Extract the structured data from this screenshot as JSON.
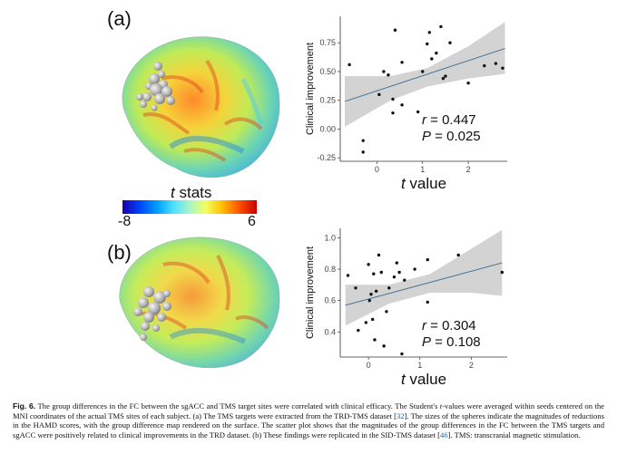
{
  "panel_a_label": "(a)",
  "panel_b_label": "(b)",
  "colorbar": {
    "title_italic": "t",
    "title_rest": "stats",
    "min_label": "-8",
    "max_label": "6"
  },
  "chart_data": [
    {
      "type": "scatter",
      "panel": "(a)",
      "xlabel": "t value",
      "ylabel": "Clinical improvement",
      "xlim": [
        -0.8,
        2.85
      ],
      "ylim": [
        -0.28,
        0.98
      ],
      "xticks": [
        0,
        1,
        2
      ],
      "yticks": [
        -0.25,
        0,
        0.25,
        0.5,
        0.75
      ],
      "ytick_labels": [
        "-0.25",
        "0.00",
        "0.25",
        "0.50",
        "0.75"
      ],
      "stat_r": "r = 0.447",
      "stat_p": "P = 0.025",
      "fit": {
        "x0": -0.7,
        "y0": 0.24,
        "x1": 2.8,
        "y1": 0.7
      },
      "band": {
        "upper": [
          [
            -0.7,
            0.46
          ],
          [
            0.3,
            0.46
          ],
          [
            1.1,
            0.53
          ],
          [
            2.0,
            0.72
          ],
          [
            2.8,
            0.93
          ]
        ],
        "lower": [
          [
            2.8,
            0.48
          ],
          [
            2.0,
            0.44
          ],
          [
            1.1,
            0.37
          ],
          [
            0.3,
            0.25
          ],
          [
            -0.7,
            0.02
          ]
        ]
      },
      "points": [
        {
          "x": -0.6,
          "y": 0.56
        },
        {
          "x": -0.3,
          "y": -0.1
        },
        {
          "x": -0.3,
          "y": -0.2
        },
        {
          "x": 0.05,
          "y": 0.3
        },
        {
          "x": 0.15,
          "y": 0.5
        },
        {
          "x": 0.25,
          "y": 0.47
        },
        {
          "x": 0.35,
          "y": 0.26
        },
        {
          "x": 0.35,
          "y": 0.14
        },
        {
          "x": 0.4,
          "y": 0.86
        },
        {
          "x": 0.55,
          "y": 0.58
        },
        {
          "x": 0.55,
          "y": 0.21
        },
        {
          "x": 0.9,
          "y": 0.15
        },
        {
          "x": 1.0,
          "y": 0.5
        },
        {
          "x": 1.1,
          "y": 0.74
        },
        {
          "x": 1.15,
          "y": 0.84
        },
        {
          "x": 1.2,
          "y": 0.61
        },
        {
          "x": 1.3,
          "y": 0.66
        },
        {
          "x": 1.4,
          "y": 0.89
        },
        {
          "x": 1.45,
          "y": 0.44
        },
        {
          "x": 1.5,
          "y": 0.46
        },
        {
          "x": 1.6,
          "y": 0.75
        },
        {
          "x": 2.0,
          "y": 0.4
        },
        {
          "x": 2.35,
          "y": 0.55
        },
        {
          "x": 2.6,
          "y": 0.57
        },
        {
          "x": 2.75,
          "y": 0.53
        }
      ]
    },
    {
      "type": "scatter",
      "panel": "(b)",
      "xlabel": "t value",
      "ylabel": "Clinical improvement",
      "xlim": [
        -0.55,
        2.7
      ],
      "ylim": [
        0.24,
        1.06
      ],
      "xticks": [
        0,
        1,
        2
      ],
      "yticks": [
        0.4,
        0.6,
        0.8,
        1.0
      ],
      "ytick_labels": [
        "0.4",
        "0.6",
        "0.8",
        "1.0"
      ],
      "stat_r": "r = 0.304",
      "stat_p": "P = 0.108",
      "fit": {
        "x0": -0.45,
        "y0": 0.57,
        "x1": 2.6,
        "y1": 0.84
      },
      "band": {
        "upper": [
          [
            -0.45,
            0.7
          ],
          [
            0.4,
            0.7
          ],
          [
            1.2,
            0.77
          ],
          [
            2.0,
            0.93
          ],
          [
            2.6,
            1.05
          ]
        ],
        "lower": [
          [
            2.6,
            0.63
          ],
          [
            2.0,
            0.65
          ],
          [
            1.2,
            0.65
          ],
          [
            0.4,
            0.58
          ],
          [
            -0.45,
            0.44
          ]
        ]
      },
      "points": [
        {
          "x": -0.4,
          "y": 0.76
        },
        {
          "x": -0.25,
          "y": 0.68
        },
        {
          "x": -0.2,
          "y": 0.41
        },
        {
          "x": -0.05,
          "y": 0.46
        },
        {
          "x": 0.0,
          "y": 0.83
        },
        {
          "x": 0.02,
          "y": 0.6
        },
        {
          "x": 0.05,
          "y": 0.64
        },
        {
          "x": 0.08,
          "y": 0.48
        },
        {
          "x": 0.1,
          "y": 0.77
        },
        {
          "x": 0.12,
          "y": 0.35
        },
        {
          "x": 0.15,
          "y": 0.66
        },
        {
          "x": 0.2,
          "y": 0.89
        },
        {
          "x": 0.25,
          "y": 0.78
        },
        {
          "x": 0.3,
          "y": 0.31
        },
        {
          "x": 0.35,
          "y": 0.53
        },
        {
          "x": 0.4,
          "y": 0.68
        },
        {
          "x": 0.5,
          "y": 0.75
        },
        {
          "x": 0.55,
          "y": 0.84
        },
        {
          "x": 0.6,
          "y": 0.78
        },
        {
          "x": 0.65,
          "y": 0.26
        },
        {
          "x": 0.7,
          "y": 0.73
        },
        {
          "x": 0.9,
          "y": 0.8
        },
        {
          "x": 1.15,
          "y": 0.86
        },
        {
          "x": 1.15,
          "y": 0.59
        },
        {
          "x": 1.75,
          "y": 0.89
        },
        {
          "x": 2.6,
          "y": 0.78
        }
      ]
    }
  ],
  "caption": {
    "label": "Fig. 6.",
    "seg1": " The group differences in the FC between the sgACC and TMS target sites were correlated with clinical efficacy. The Student's ",
    "t": "t",
    "seg2": "-values were averaged within seeds centered on the MNI coordinates of the actual TMS sites of each subject. (a) The TMS targets were extracted from the TRD-TMS dataset [",
    "ref1": "32",
    "seg3": "]. The sizes of the spheres indicate the magnitudes of reductions in the HAMD scores, with the group difference map rendered on the surface. The scatter plot shows that the magnitudes of the group differences in the FC between the TMS targets and sgACC were positively related to clinical improvements in the TRD dataset. (b) These findings were replicated in the SID-TMS dataset [",
    "ref2": "46",
    "seg4": "]. TMS: transcranial magnetic stimulation."
  }
}
